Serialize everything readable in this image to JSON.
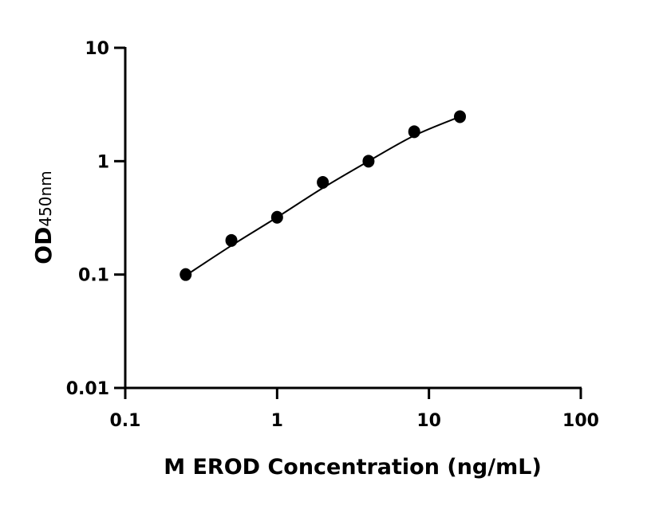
{
  "chart_data": {
    "type": "scatter",
    "title": "",
    "xlabel": "M EROD Concentration (ng/mL)",
    "ylabel": "OD",
    "ylabel_subscript": "450nm",
    "xscale": "log",
    "yscale": "log",
    "xlim": [
      0.1,
      100
    ],
    "ylim": [
      0.01,
      10
    ],
    "x_ticks": [
      "0.1",
      "1",
      "10",
      "100"
    ],
    "y_ticks": [
      "0.01",
      "0.1",
      "1",
      "10"
    ],
    "grid": false,
    "legend": "none",
    "color": "#000000",
    "points": {
      "x": [
        0.25,
        0.5,
        1,
        2,
        4,
        8,
        16
      ],
      "y": [
        0.1,
        0.2,
        0.32,
        0.65,
        1.0,
        1.82,
        2.47
      ]
    },
    "fit_curve": {
      "x": [
        0.25,
        0.5,
        1,
        2,
        4,
        8,
        16
      ],
      "y": [
        0.098,
        0.18,
        0.32,
        0.58,
        1.0,
        1.68,
        2.47
      ]
    }
  }
}
